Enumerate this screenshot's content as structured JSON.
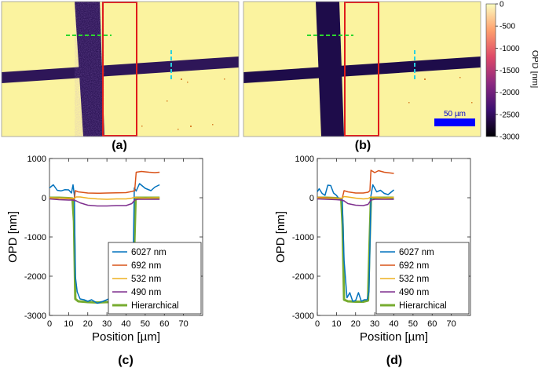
{
  "panels": {
    "a": {
      "label": "(a)"
    },
    "b": {
      "label": "(b)"
    },
    "c": {
      "label": "(c)"
    },
    "d": {
      "label": "(d)"
    }
  },
  "colorbar": {
    "label": "OPD [nm]",
    "ticks": [
      0,
      -500,
      -1000,
      -1500,
      -2000,
      -2500,
      -3000
    ],
    "colors": [
      "#000004",
      "#3b0f70",
      "#8c2981",
      "#de4968",
      "#fe9f6d",
      "#fcfdbf"
    ]
  },
  "scalebar": {
    "label": "50 µm",
    "color": "#0000ff"
  },
  "image_colors": {
    "background": "#fbf39f",
    "trace_a": "#2e1658",
    "trace_b": "#1e0c4a",
    "roi": "#e01b1b",
    "line_h": "#2ed82e",
    "line_v": "#29d1e0"
  },
  "chart_data": [
    {
      "type": "line",
      "panel": "c",
      "xlabel": "Position [µm]",
      "ylabel": "OPD [nm]",
      "xlim": [
        0,
        80
      ],
      "ylim": [
        -3000,
        1000
      ],
      "xticks": [
        0,
        10,
        20,
        30,
        40,
        50,
        60,
        70
      ],
      "yticks": [
        1000,
        0,
        -1000,
        -2000,
        -3000
      ],
      "legend": "bottom-right",
      "series": [
        {
          "name": "6027 nm",
          "color": "#0072bd",
          "width": 1.5,
          "x": [
            0,
            2,
            4,
            6,
            8,
            10,
            11.5,
            12.3,
            13,
            13.5,
            14.5,
            16,
            18,
            20,
            22,
            25,
            28,
            30,
            33,
            36,
            38,
            40,
            42,
            43.5,
            44.3,
            45.3,
            47,
            50,
            53,
            55,
            57.5
          ],
          "y": [
            250,
            330,
            190,
            175,
            205,
            200,
            120,
            330,
            60,
            -2000,
            -2400,
            -2580,
            -2600,
            -2640,
            -2600,
            -2690,
            -2640,
            -2600,
            -2520,
            -2560,
            -2650,
            -2420,
            -2580,
            -2350,
            250,
            170,
            360,
            240,
            180,
            270,
            330
          ]
        },
        {
          "name": "692 nm",
          "color": "#d95319",
          "width": 1.5,
          "x": [
            0,
            5,
            10,
            12,
            13,
            13.5,
            15,
            20,
            25,
            30,
            35,
            40,
            43,
            44.5,
            45.3,
            48,
            52,
            55,
            57.5
          ],
          "y": [
            0,
            -10,
            -20,
            -30,
            -30,
            180,
            150,
            120,
            115,
            120,
            125,
            130,
            160,
            180,
            650,
            670,
            650,
            640,
            650
          ]
        },
        {
          "name": "532 nm",
          "color": "#edb120",
          "width": 1.5,
          "x": [
            0,
            5,
            10,
            12,
            13,
            14,
            16,
            20,
            25,
            30,
            35,
            40,
            43,
            44.5,
            46,
            50,
            55,
            57.5
          ],
          "y": [
            0,
            -10,
            -10,
            -20,
            -10,
            20,
            20,
            -10,
            -30,
            -40,
            -30,
            -30,
            -10,
            10,
            0,
            -10,
            0,
            0
          ]
        },
        {
          "name": "490 nm",
          "color": "#7e2f8e",
          "width": 1.5,
          "x": [
            0,
            5,
            10,
            12,
            13,
            14,
            16,
            20,
            25,
            30,
            35,
            40,
            43,
            44.5,
            46,
            50,
            55,
            57.5
          ],
          "y": [
            -30,
            -50,
            -60,
            -60,
            -70,
            -80,
            -130,
            -190,
            -210,
            -210,
            -200,
            -200,
            -150,
            -60,
            -40,
            -40,
            -40,
            -40
          ]
        },
        {
          "name": "Hierarchical",
          "color": "#77ac30",
          "width": 3,
          "x": [
            0,
            5,
            10,
            12,
            12.8,
            13.5,
            15,
            20,
            25,
            30,
            35,
            40,
            43.5,
            44.3,
            45,
            50,
            55,
            57.5
          ],
          "y": [
            0,
            0,
            -10,
            -20,
            -600,
            -2580,
            -2640,
            -2660,
            -2670,
            -2660,
            -2660,
            -2650,
            -2620,
            -1200,
            0,
            0,
            0,
            0
          ]
        }
      ]
    },
    {
      "type": "line",
      "panel": "d",
      "xlabel": "Position [µm]",
      "ylabel": "OPD [nm]",
      "xlim": [
        0,
        80
      ],
      "ylim": [
        -3000,
        1000
      ],
      "xticks": [
        0,
        10,
        20,
        30,
        40,
        50,
        60,
        70
      ],
      "yticks": [
        1000,
        0,
        -1000,
        -2000,
        -3000
      ],
      "legend": "bottom-right",
      "series": [
        {
          "name": "6027 nm",
          "color": "#0072bd",
          "width": 1.5,
          "x": [
            0,
            1,
            2.5,
            4,
            5.5,
            7,
            8.5,
            10,
            11.5,
            12.5,
            13,
            14,
            15.5,
            17,
            18.5,
            20,
            21.5,
            23,
            24.5,
            26,
            27,
            28,
            29,
            31,
            33,
            35,
            37,
            40
          ],
          "y": [
            150,
            230,
            110,
            60,
            320,
            310,
            120,
            60,
            -40,
            -50,
            0,
            -1600,
            -2550,
            -2420,
            -2640,
            -2620,
            -2420,
            -2640,
            -2600,
            -2600,
            -2400,
            50,
            330,
            150,
            190,
            110,
            80,
            200
          ]
        },
        {
          "name": "692 nm",
          "color": "#d95319",
          "width": 1.5,
          "x": [
            0,
            5,
            10,
            12.5,
            13,
            14,
            16,
            20,
            24,
            26.5,
            27.5,
            28,
            30,
            32,
            35,
            40
          ],
          "y": [
            10,
            0,
            -10,
            -20,
            -20,
            180,
            150,
            120,
            120,
            140,
            180,
            700,
            640,
            690,
            650,
            620
          ]
        },
        {
          "name": "532 nm",
          "color": "#edb120",
          "width": 1.5,
          "x": [
            0,
            5,
            10,
            12.5,
            14,
            16,
            20,
            24,
            26.5,
            28,
            30,
            35,
            40
          ],
          "y": [
            0,
            -10,
            -10,
            -20,
            30,
            20,
            -10,
            -30,
            -20,
            20,
            10,
            -10,
            10
          ]
        },
        {
          "name": "490 nm",
          "color": "#7e2f8e",
          "width": 1.5,
          "x": [
            0,
            5,
            10,
            12.5,
            14,
            16,
            20,
            24,
            26.5,
            28,
            30,
            35,
            40
          ],
          "y": [
            -30,
            -40,
            -50,
            -60,
            -80,
            -150,
            -190,
            -200,
            -170,
            -60,
            -40,
            -40,
            -40
          ]
        },
        {
          "name": "Hierarchical",
          "color": "#77ac30",
          "width": 3,
          "x": [
            0,
            5,
            10,
            12.5,
            13.2,
            14,
            16,
            20,
            24,
            26.5,
            27.3,
            28,
            30,
            35,
            40
          ],
          "y": [
            0,
            0,
            -10,
            -30,
            -700,
            -2600,
            -2640,
            -2650,
            -2650,
            -2620,
            -1200,
            0,
            0,
            0,
            0
          ]
        }
      ]
    }
  ]
}
